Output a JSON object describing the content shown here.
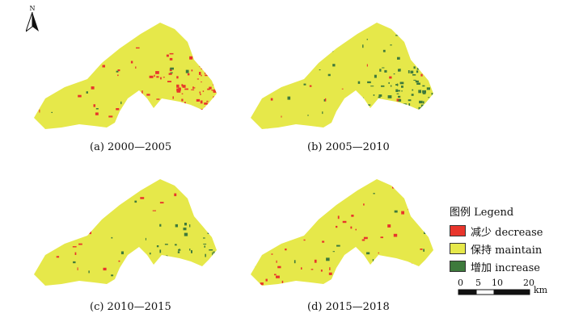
{
  "north_label": "N",
  "maps": [
    {
      "id": "a",
      "caption": "(a) 2000—2005",
      "red_level": "high",
      "green_level": "low"
    },
    {
      "id": "b",
      "caption": "(b) 2005—2010",
      "red_level": "low",
      "green_level": "high"
    },
    {
      "id": "c",
      "caption": "(c) 2010—2015",
      "red_level": "low",
      "green_level": "medium"
    },
    {
      "id": "d",
      "caption": "(d) 2015—2018",
      "red_level": "medium",
      "green_level": "low"
    }
  ],
  "legend": {
    "title": "图例 Legend",
    "items": [
      {
        "label": "减少 decrease",
        "color": "#e8352b"
      },
      {
        "label": "保持 maintain",
        "color": "#e6e84a"
      },
      {
        "label": "增加 increase",
        "color": "#3e7a3c"
      }
    ]
  },
  "scale_bar": {
    "ticks": [
      "0",
      "5",
      "10",
      "20"
    ],
    "unit": "km"
  },
  "colors": {
    "maintain": "#e6e84a",
    "decrease": "#e8352b",
    "increase": "#3e7a3c"
  }
}
